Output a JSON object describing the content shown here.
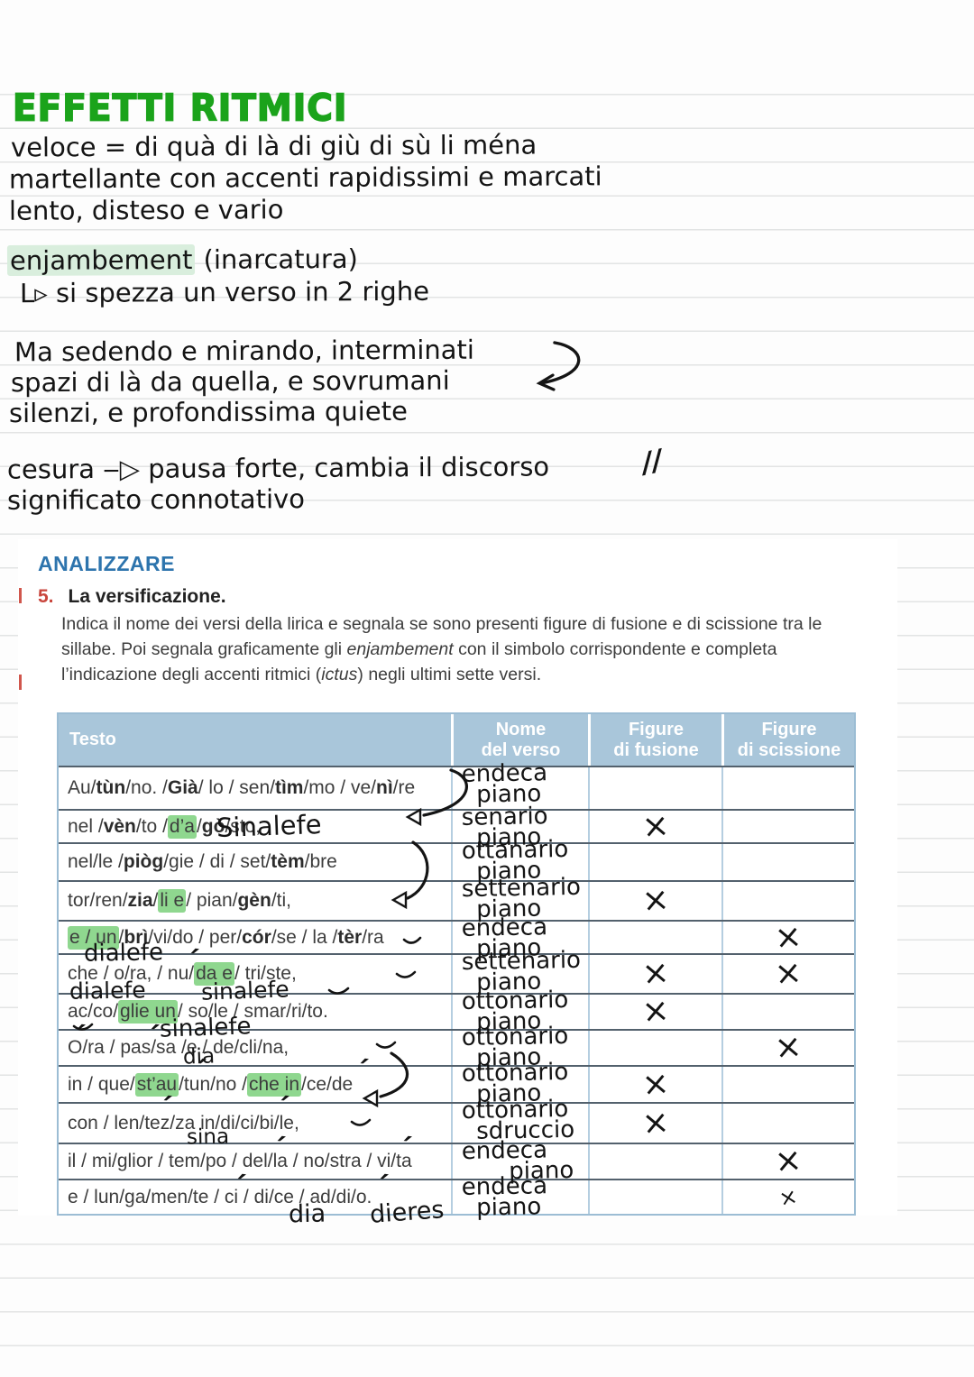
{
  "colors": {
    "title_green": "#1ba31b",
    "pale_highlight": "#d9eedd",
    "syllable_highlight": "#8fd78f",
    "header_blue": "#a9c6da",
    "section_blue": "#2d74ad",
    "number_red": "#c9463d",
    "table_border_blue": "#9cbdd4",
    "row_line": "#53616d",
    "ink": "#141414",
    "print": "#3d3d3d"
  },
  "notes": {
    "title": "EFFETTI RITMICI",
    "lines": [
      [
        {
          "t": "veloce = di quà di là di giù di sù li ména"
        }
      ],
      [
        {
          "t": "martellante con accenti rapidissimi e marcati"
        }
      ],
      [
        {
          "t": "lento, disteso e vario"
        }
      ],
      [
        {
          "t": "enjambement",
          "hl": true
        },
        {
          "t": " (inarcatura)"
        }
      ],
      [
        {
          "t": "L▹ si spezza un verso in 2 righe"
        }
      ],
      [
        {
          "t": "Ma sedendo e mirando, interminati"
        }
      ],
      [
        {
          "t": "spazi di là da quella, e sovrumani"
        }
      ],
      [
        {
          "t": "silenzi, e profondissima quiete"
        }
      ],
      [
        {
          "t": "cesura ‒▷ pausa forte, cambia il discorso"
        }
      ],
      [
        {
          "t": "significato connotativo"
        }
      ]
    ],
    "cesura_mark": "//"
  },
  "exercise": {
    "section_label": "ANALIZZARE",
    "number": "5.",
    "title": "La versificazione.",
    "instructions": [
      {
        "t": "Indica il nome dei versi della lirica e segnala se sono presenti figure di fusione e di scissione tra le sillabe. Poi segnala graficamente gli "
      },
      {
        "t": "enjambement",
        "i": true
      },
      {
        "t": " con il simbolo corrispondente e completa l’indicazione degli accenti ritmici ("
      },
      {
        "t": "ictus",
        "i": true
      },
      {
        "t": ") negli ultimi sette versi."
      }
    ],
    "marks": {
      "ictus": "´",
      "cross": "×",
      "triangle": "◁"
    },
    "table": {
      "headers": [
        [
          "Testo"
        ],
        [
          "Nome",
          "del verso"
        ],
        [
          "Figure",
          "di fusione"
        ],
        [
          "Figure",
          "di scissione"
        ]
      ],
      "rows": [
        {
          "testo": [
            [
              "Au/"
            ],
            [
              "tùn",
              "b"
            ],
            [
              "/no. / "
            ],
            [
              "Già",
              "b"
            ],
            [
              " / lo / sen/"
            ],
            [
              "tìm",
              "b"
            ],
            [
              "/mo / ve/"
            ],
            [
              "nì",
              "b"
            ],
            [
              "/re"
            ]
          ],
          "nome": [
            "endeca",
            "piano"
          ],
          "fusione": "",
          "scissione": "",
          "annotations": []
        },
        {
          "testo": [
            [
              "nel / "
            ],
            [
              "vèn",
              "b"
            ],
            [
              "/to / "
            ],
            [
              "d’a",
              "h"
            ],
            [
              "/"
            ],
            [
              "gò",
              "b"
            ],
            [
              "/sto,"
            ]
          ],
          "nome": [
            "senario",
            "piano"
          ],
          "fusione": "×",
          "scissione": "",
          "annotations": [
            "Sinalefe"
          ]
        },
        {
          "testo": [
            [
              "nel/le / "
            ],
            [
              "piòg",
              "b"
            ],
            [
              "/gie / di / set/"
            ],
            [
              "tèm",
              "b"
            ],
            [
              "/bre"
            ]
          ],
          "nome": [
            "ottanario",
            "piano"
          ],
          "fusione": "",
          "scissione": "",
          "annotations": []
        },
        {
          "testo": [
            [
              "tor/ren/"
            ],
            [
              "zia",
              "b"
            ],
            [
              "/"
            ],
            [
              "li e",
              "h"
            ],
            [
              " / pian/"
            ],
            [
              "gèn",
              "b"
            ],
            [
              "/ti,"
            ]
          ],
          "nome": [
            "settenario",
            "piano"
          ],
          "fusione": "×",
          "scissione": "",
          "annotations": []
        },
        {
          "testo": [
            [
              "e / un",
              "h"
            ],
            [
              " / "
            ],
            [
              "brì",
              "b"
            ],
            [
              "/vi/do / per/"
            ],
            [
              "cór",
              "b"
            ],
            [
              "/se / la / "
            ],
            [
              "tèr",
              "b"
            ],
            [
              "/ra"
            ]
          ],
          "nome": [
            "endeca",
            "piano"
          ],
          "fusione": "",
          "scissione": "×",
          "annotations": [
            "dialefe"
          ]
        },
        {
          "testo": [
            [
              "che / o/ra, / nu/"
            ],
            [
              "da e",
              "h"
            ],
            [
              " / tri/ste,"
            ]
          ],
          "nome": [
            "settenario",
            "piano"
          ],
          "fusione": "×",
          "scissione": "×",
          "annotations": [
            "dialefe",
            "sinalefe"
          ]
        },
        {
          "testo": [
            [
              "ac/co/"
            ],
            [
              "glie un",
              "h"
            ],
            [
              "/ so/le / smar/ri/to."
            ]
          ],
          "nome": [
            "ottonario",
            "piano"
          ],
          "fusione": "×",
          "scissione": "",
          "annotations": [
            "sinalefe"
          ]
        },
        {
          "testo": [
            [
              "O/ra / pas/sa /e / de/cli/na,"
            ]
          ],
          "nome": [
            "ottonario",
            "piano"
          ],
          "fusione": "",
          "scissione": "×",
          "annotations": [
            "dia"
          ]
        },
        {
          "testo": [
            [
              "in / que/"
            ],
            [
              "st’au",
              "h"
            ],
            [
              "/tun/no / "
            ],
            [
              "che in",
              "h"
            ],
            [
              "/ce/de"
            ]
          ],
          "nome": [
            "ottonario",
            "piano"
          ],
          "fusione": "×",
          "scissione": "",
          "annotations": []
        },
        {
          "testo": [
            [
              "con / len/tez/za  in/di/ci/bi/le,"
            ]
          ],
          "nome": [
            "ottonario",
            "sdruccio"
          ],
          "fusione": "×",
          "scissione": "",
          "annotations": [
            "sina"
          ]
        },
        {
          "testo": [
            [
              "il / mi/glior / tem/po / del/la / no/stra / vi/ta"
            ]
          ],
          "nome": [
            "endeca",
            "piano"
          ],
          "fusione": "",
          "scissione": "×",
          "annotations": []
        },
        {
          "testo": [
            [
              "e / lun/ga/men/te / ci / di/ce / ad/di/o."
            ]
          ],
          "nome": [
            "endeca",
            "piano"
          ],
          "fusione": "",
          "scissione": "×",
          "annotations": [
            "dia",
            "dieres"
          ]
        }
      ]
    }
  }
}
